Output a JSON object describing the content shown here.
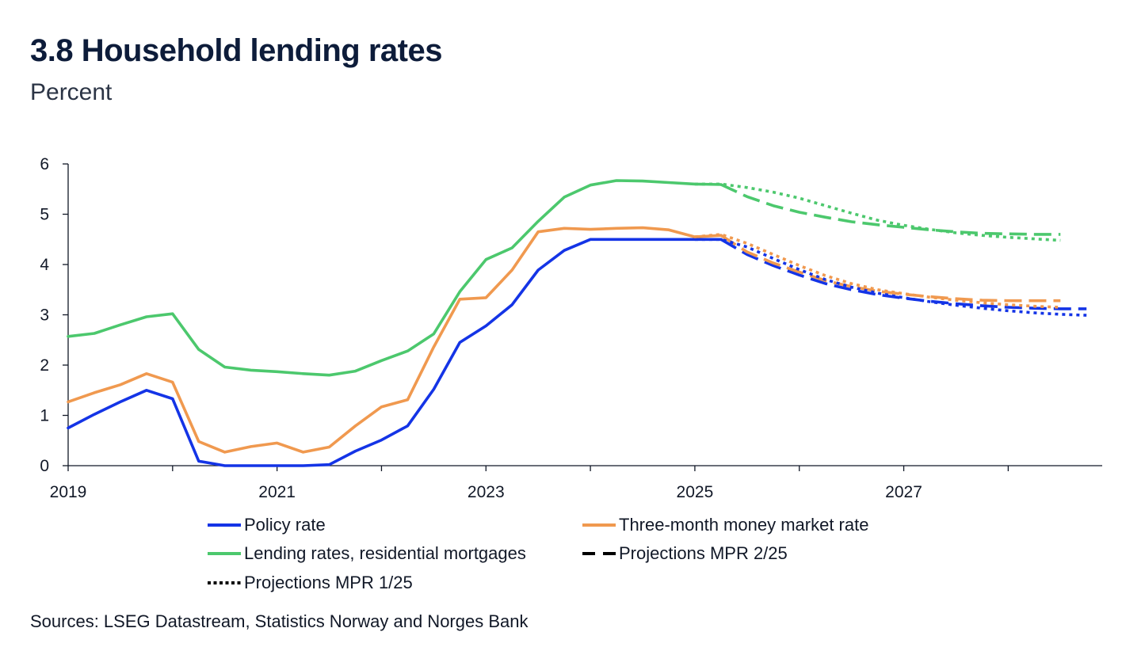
{
  "header": {
    "title": "3.8 Household lending rates",
    "subtitle": "Percent"
  },
  "footer": {
    "source": "Sources: LSEG Datastream, Statistics Norway and  Norges Bank"
  },
  "colors": {
    "policy": "#1434e6",
    "money_market": "#f0994f",
    "lending": "#4cc86d",
    "axis": "#111827"
  },
  "chart_data": {
    "type": "line",
    "title": "3.8 Household lending rates",
    "ylabel": "Percent",
    "xlim": [
      2019.0,
      2028.9
    ],
    "ylim": [
      0,
      6
    ],
    "y_ticks": [
      "0",
      "1",
      "2",
      "3",
      "4",
      "5",
      "6"
    ],
    "x_ticks": [
      "2019",
      "2021",
      "2023",
      "2025",
      "2027"
    ],
    "grid": false,
    "legend_position": "bottom",
    "legend": [
      {
        "label": "Policy rate",
        "style": "solid",
        "color": "#1434e6"
      },
      {
        "label": "Three-month money market rate",
        "style": "solid",
        "color": "#f0994f"
      },
      {
        "label": "Lending rates, residential mortgages",
        "style": "solid",
        "color": "#4cc86d"
      },
      {
        "label": "Projections MPR 2/25",
        "style": "dashed",
        "color": "#000000"
      },
      {
        "label": "Projections MPR 1/25",
        "style": "dotted",
        "color": "#000000"
      }
    ],
    "series": [
      {
        "name": "Policy rate",
        "key": "policy",
        "style": "solid",
        "x": [
          2019.0,
          2019.25,
          2019.5,
          2019.75,
          2020.0,
          2020.25,
          2020.5,
          2020.75,
          2021.0,
          2021.25,
          2021.5,
          2021.75,
          2022.0,
          2022.25,
          2022.5,
          2022.75,
          2023.0,
          2023.25,
          2023.5,
          2023.75,
          2024.0,
          2024.25,
          2024.5,
          2024.75,
          2025.0,
          2025.25
        ],
        "y": [
          0.75,
          1.02,
          1.27,
          1.5,
          1.33,
          0.09,
          0.0,
          0.0,
          0.0,
          0.0,
          0.02,
          0.29,
          0.51,
          0.79,
          1.52,
          2.45,
          2.78,
          3.2,
          3.89,
          4.28,
          4.5,
          4.5,
          4.5,
          4.5,
          4.5,
          4.5
        ]
      },
      {
        "name": "Three-month money market rate",
        "key": "money_market",
        "style": "solid",
        "x": [
          2019.0,
          2019.25,
          2019.5,
          2019.75,
          2020.0,
          2020.25,
          2020.5,
          2020.75,
          2021.0,
          2021.25,
          2021.5,
          2021.75,
          2022.0,
          2022.25,
          2022.5,
          2022.75,
          2023.0,
          2023.25,
          2023.5,
          2023.75,
          2024.0,
          2024.25,
          2024.5,
          2024.75,
          2025.0,
          2025.25
        ],
        "y": [
          1.27,
          1.45,
          1.61,
          1.83,
          1.66,
          0.48,
          0.27,
          0.38,
          0.45,
          0.27,
          0.37,
          0.79,
          1.17,
          1.31,
          2.36,
          3.31,
          3.34,
          3.89,
          4.65,
          4.72,
          4.7,
          4.72,
          4.73,
          4.69,
          4.55,
          4.58
        ]
      },
      {
        "name": "Lending rates, residential mortgages",
        "key": "lending",
        "style": "solid",
        "x": [
          2019.0,
          2019.25,
          2019.5,
          2019.75,
          2020.0,
          2020.25,
          2020.5,
          2020.75,
          2021.0,
          2021.25,
          2021.5,
          2021.75,
          2022.0,
          2022.25,
          2022.5,
          2022.75,
          2023.0,
          2023.25,
          2023.5,
          2023.75,
          2024.0,
          2024.25,
          2024.5,
          2024.75,
          2025.0,
          2025.25
        ],
        "y": [
          2.57,
          2.63,
          2.8,
          2.96,
          3.02,
          2.31,
          1.96,
          1.9,
          1.87,
          1.83,
          1.8,
          1.88,
          2.09,
          2.28,
          2.62,
          3.46,
          4.1,
          4.33,
          4.86,
          5.34,
          5.58,
          5.67,
          5.66,
          5.63,
          5.6,
          5.59
        ]
      },
      {
        "name": "Projections MPR 2/25",
        "key": "policy",
        "style": "dashed",
        "x": [
          2025.25,
          2025.5,
          2025.75,
          2026.0,
          2026.25,
          2026.5,
          2026.75,
          2027.0,
          2027.25,
          2027.5,
          2027.75,
          2028.0,
          2028.25,
          2028.5,
          2028.75
        ],
        "y": [
          4.5,
          4.2,
          3.98,
          3.79,
          3.62,
          3.5,
          3.4,
          3.33,
          3.27,
          3.22,
          3.18,
          3.15,
          3.13,
          3.12,
          3.12
        ]
      },
      {
        "name": "Projections MPR 2/25",
        "key": "money_market",
        "style": "dashed",
        "x": [
          2025.25,
          2025.5,
          2025.75,
          2026.0,
          2026.25,
          2026.5,
          2026.75,
          2027.0,
          2027.25,
          2027.5,
          2027.75,
          2028.0,
          2028.25,
          2028.5
        ],
        "y": [
          4.58,
          4.25,
          4.03,
          3.85,
          3.68,
          3.56,
          3.47,
          3.41,
          3.36,
          3.32,
          3.29,
          3.28,
          3.28,
          3.28
        ]
      },
      {
        "name": "Projections MPR 2/25",
        "key": "lending",
        "style": "dashed",
        "x": [
          2025.25,
          2025.5,
          2025.75,
          2026.0,
          2026.25,
          2026.5,
          2026.75,
          2027.0,
          2027.25,
          2027.5,
          2027.75,
          2028.0,
          2028.25,
          2028.5
        ],
        "y": [
          5.59,
          5.35,
          5.17,
          5.04,
          4.94,
          4.85,
          4.79,
          4.74,
          4.69,
          4.65,
          4.62,
          4.61,
          4.6,
          4.6
        ]
      },
      {
        "name": "Projections MPR 1/25",
        "key": "policy",
        "style": "dotted",
        "x": [
          2025.0,
          2025.25,
          2025.5,
          2025.75,
          2026.0,
          2026.25,
          2026.5,
          2026.75,
          2027.0,
          2027.25,
          2027.5,
          2027.75,
          2028.0,
          2028.25,
          2028.5,
          2028.75
        ],
        "y": [
          4.5,
          4.5,
          4.35,
          4.12,
          3.9,
          3.7,
          3.55,
          3.43,
          3.34,
          3.26,
          3.19,
          3.13,
          3.08,
          3.04,
          3.01,
          2.99
        ]
      },
      {
        "name": "Projections MPR 1/25",
        "key": "money_market",
        "style": "dotted",
        "x": [
          2025.0,
          2025.25,
          2025.5,
          2025.75,
          2026.0,
          2026.25,
          2026.5,
          2026.75,
          2027.0,
          2027.25,
          2027.5,
          2027.75,
          2028.0,
          2028.25,
          2028.5
        ],
        "y": [
          4.55,
          4.6,
          4.42,
          4.2,
          3.98,
          3.78,
          3.62,
          3.5,
          3.42,
          3.35,
          3.29,
          3.24,
          3.2,
          3.17,
          3.15
        ]
      },
      {
        "name": "Projections MPR 1/25",
        "key": "lending",
        "style": "dotted",
        "x": [
          2025.0,
          2025.25,
          2025.5,
          2025.75,
          2026.0,
          2026.25,
          2026.5,
          2026.75,
          2027.0,
          2027.25,
          2027.5,
          2027.75,
          2028.0,
          2028.25,
          2028.5
        ],
        "y": [
          5.6,
          5.6,
          5.53,
          5.44,
          5.32,
          5.17,
          5.02,
          4.88,
          4.78,
          4.7,
          4.63,
          4.58,
          4.54,
          4.51,
          4.48
        ]
      }
    ]
  }
}
